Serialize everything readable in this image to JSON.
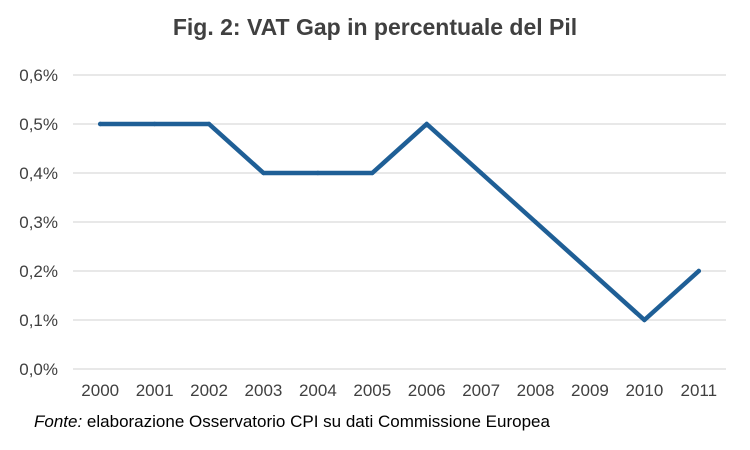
{
  "chart_data": {
    "type": "line",
    "title": "Fig. 2: VAT Gap in percentuale del Pil",
    "xlabel": "",
    "ylabel": "",
    "x": [
      "2000",
      "2001",
      "2002",
      "2003",
      "2004",
      "2005",
      "2006",
      "2007",
      "2008",
      "2009",
      "2010",
      "2011"
    ],
    "series": [
      {
        "values": [
          0.5,
          0.5,
          0.5,
          0.4,
          0.4,
          0.4,
          0.5,
          0.4,
          0.3,
          0.2,
          0.1,
          0.2
        ],
        "color": "#1F5F96"
      }
    ],
    "ylim": [
      0,
      0.6
    ],
    "yticks": [
      "0,0%",
      "0,1%",
      "0,2%",
      "0,3%",
      "0,4%",
      "0,5%",
      "0,6%"
    ],
    "grid": true,
    "grid_color": "#D9D9D9"
  },
  "source": {
    "label": "Fonte:",
    "text": " elaborazione Osservatorio CPI su dati Commissione Europea"
  }
}
